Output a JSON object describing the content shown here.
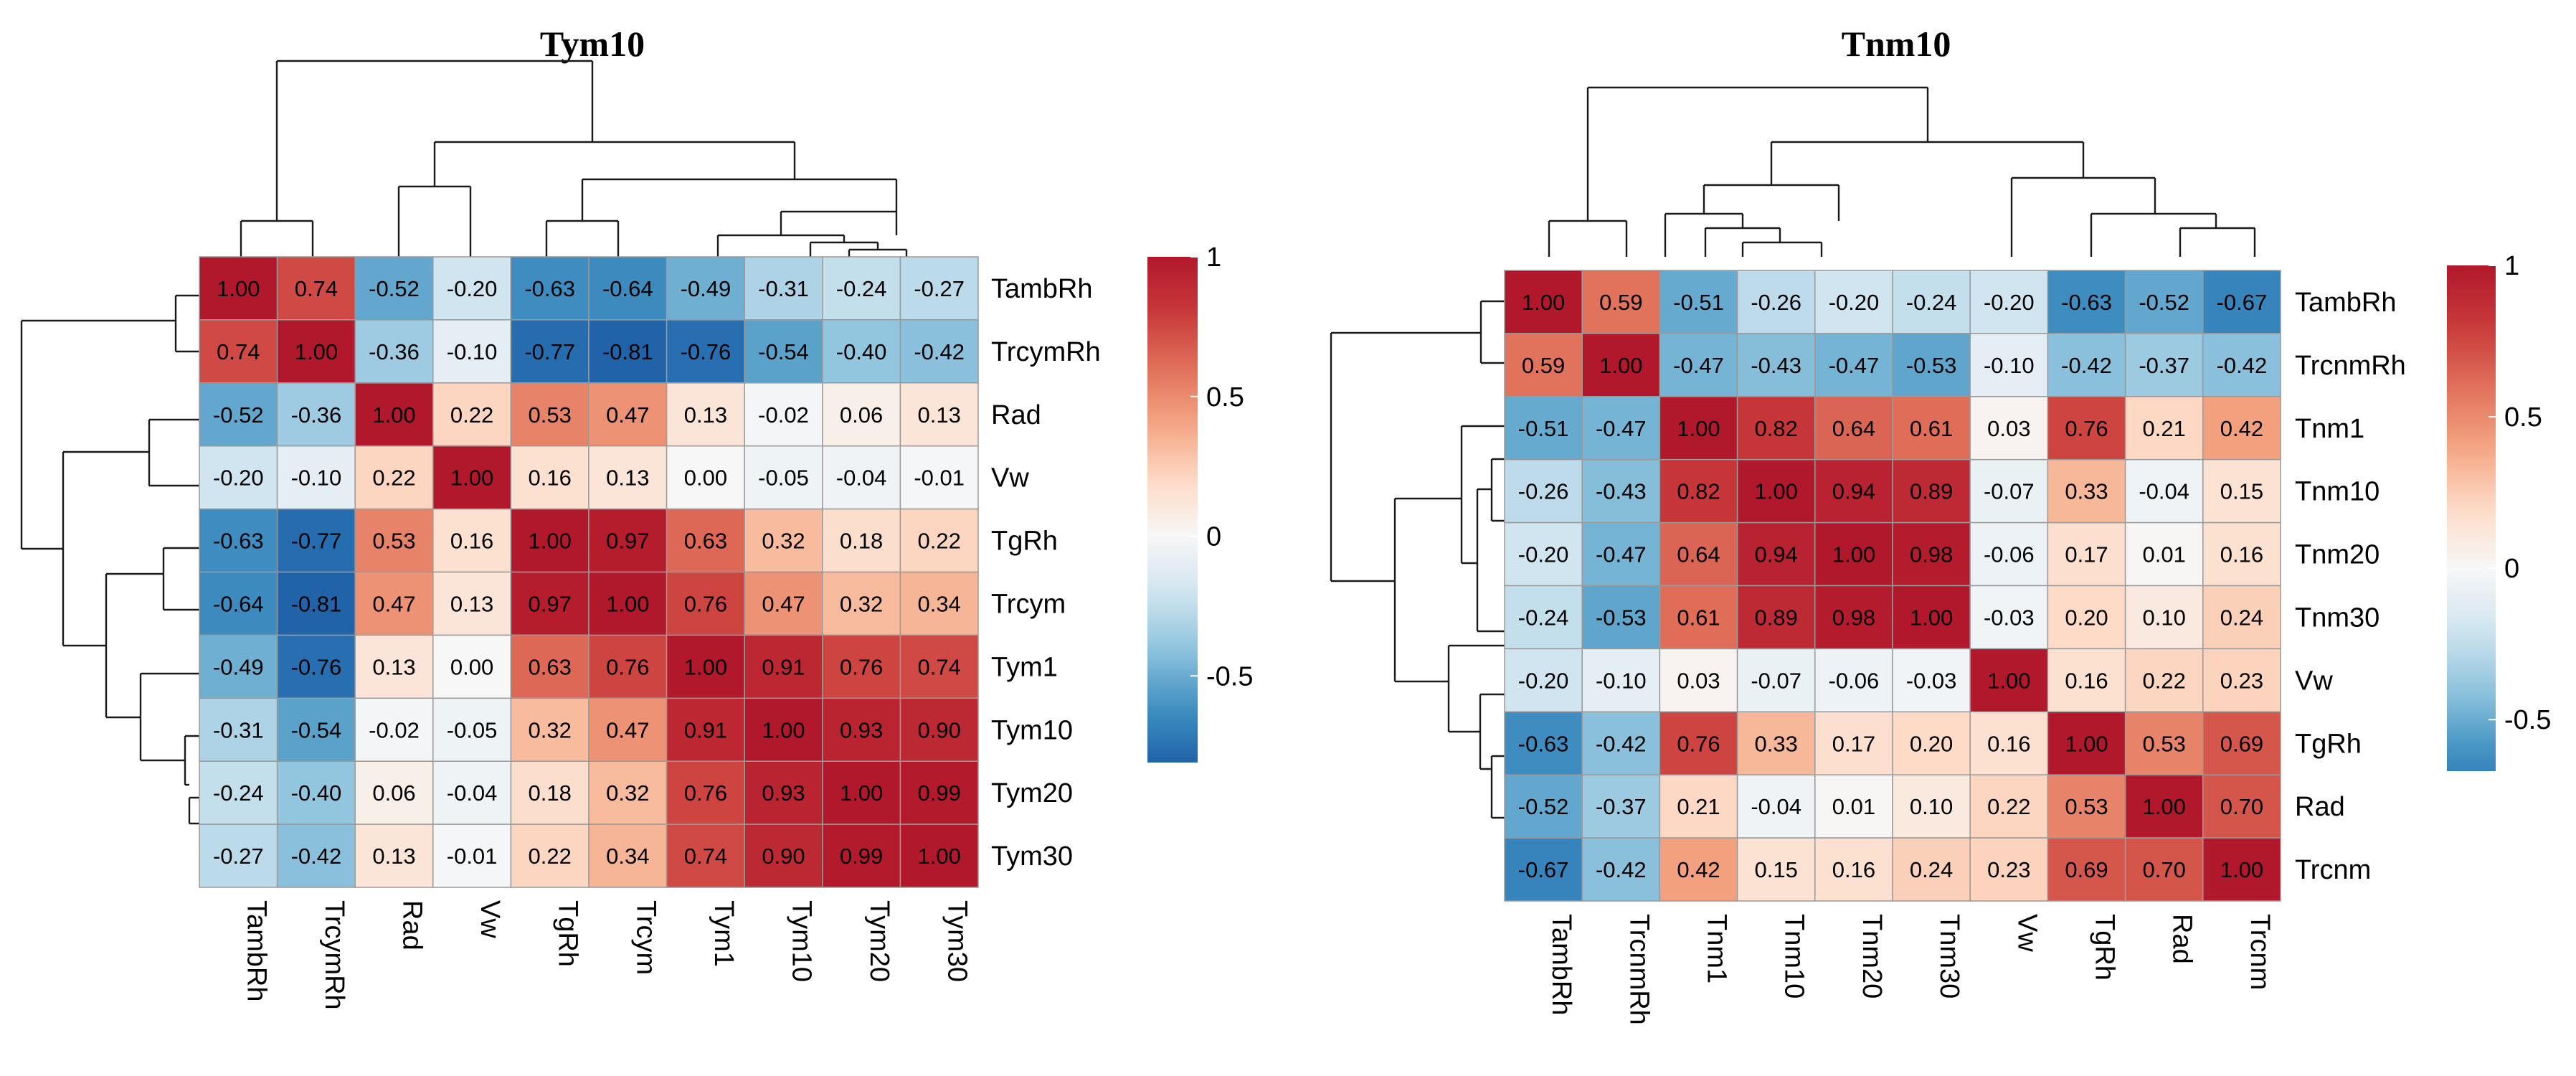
{
  "chart_data": [
    {
      "type": "heatmap",
      "title": "Tym10",
      "rows": [
        "TambRh",
        "TrcymRh",
        "Rad",
        "Vw",
        "TgRh",
        "Trcym",
        "Tym1",
        "Tym10",
        "Tym20",
        "Tym30"
      ],
      "columns": [
        "TambRh",
        "TrcymRh",
        "Rad",
        "Vw",
        "TgRh",
        "Trcym",
        "Tym1",
        "Tym10",
        "Tym20",
        "Tym30"
      ],
      "values": [
        [
          1.0,
          0.74,
          -0.52,
          -0.2,
          -0.63,
          -0.64,
          -0.49,
          -0.31,
          -0.24,
          -0.27
        ],
        [
          0.74,
          1.0,
          -0.36,
          -0.1,
          -0.77,
          -0.81,
          -0.76,
          -0.54,
          -0.4,
          -0.42
        ],
        [
          -0.52,
          -0.36,
          1.0,
          0.22,
          0.53,
          0.47,
          0.13,
          -0.02,
          0.06,
          0.13
        ],
        [
          -0.2,
          -0.1,
          0.22,
          1.0,
          0.16,
          0.13,
          0.0,
          -0.05,
          -0.04,
          -0.01
        ],
        [
          -0.63,
          -0.77,
          0.53,
          0.16,
          1.0,
          0.97,
          0.63,
          0.32,
          0.18,
          0.22
        ],
        [
          -0.64,
          -0.81,
          0.47,
          0.13,
          0.97,
          1.0,
          0.76,
          0.47,
          0.32,
          0.34
        ],
        [
          -0.49,
          -0.76,
          0.13,
          0.0,
          0.63,
          0.76,
          1.0,
          0.91,
          0.76,
          0.74
        ],
        [
          -0.31,
          -0.54,
          -0.02,
          -0.05,
          0.32,
          0.47,
          0.91,
          1.0,
          0.93,
          0.9
        ],
        [
          -0.24,
          -0.4,
          0.06,
          -0.04,
          0.18,
          0.32,
          0.76,
          0.93,
          1.0,
          0.99
        ],
        [
          -0.27,
          -0.42,
          0.13,
          -0.01,
          0.22,
          0.34,
          0.74,
          0.9,
          0.99,
          1.0
        ]
      ],
      "value_range": [
        -0.81,
        1.0
      ],
      "colorbar": {
        "ticks": [
          1,
          0.5,
          0,
          -0.5
        ],
        "tick_labels": [
          "1",
          "0.5",
          "0",
          "-0.5"
        ],
        "min": -0.81,
        "max": 1.0
      },
      "colormap": {
        "low": "#2166ac",
        "mid": "#f7f7f7",
        "high": "#b2182b"
      }
    },
    {
      "type": "heatmap",
      "title": "Tnm10",
      "rows": [
        "TambRh",
        "TrcnmRh",
        "Tnm1",
        "Tnm10",
        "Tnm20",
        "Tnm30",
        "Vw",
        "TgRh",
        "Rad",
        "Trcnm"
      ],
      "columns": [
        "TambRh",
        "TrcnmRh",
        "Tnm1",
        "Tnm10",
        "Tnm20",
        "Tnm30",
        "Vw",
        "TgRh",
        "Rad",
        "Trcnm"
      ],
      "values": [
        [
          1.0,
          0.59,
          -0.51,
          -0.26,
          -0.2,
          -0.24,
          -0.2,
          -0.63,
          -0.52,
          -0.67
        ],
        [
          0.59,
          1.0,
          -0.47,
          -0.43,
          -0.47,
          -0.53,
          -0.1,
          -0.42,
          -0.37,
          -0.42
        ],
        [
          -0.51,
          -0.47,
          1.0,
          0.82,
          0.64,
          0.61,
          0.03,
          0.76,
          0.21,
          0.42
        ],
        [
          -0.26,
          -0.43,
          0.82,
          1.0,
          0.94,
          0.89,
          -0.07,
          0.33,
          -0.04,
          0.15
        ],
        [
          -0.2,
          -0.47,
          0.64,
          0.94,
          1.0,
          0.98,
          -0.06,
          0.17,
          0.01,
          0.16
        ],
        [
          -0.24,
          -0.53,
          0.61,
          0.89,
          0.98,
          1.0,
          -0.03,
          0.2,
          0.1,
          0.24
        ],
        [
          -0.2,
          -0.1,
          0.03,
          -0.07,
          -0.06,
          -0.03,
          1.0,
          0.16,
          0.22,
          0.23
        ],
        [
          -0.63,
          -0.42,
          0.76,
          0.33,
          0.17,
          0.2,
          0.16,
          1.0,
          0.53,
          0.69
        ],
        [
          -0.52,
          -0.37,
          0.21,
          -0.04,
          0.01,
          0.1,
          0.22,
          0.53,
          1.0,
          0.7
        ],
        [
          -0.67,
          -0.42,
          0.42,
          0.15,
          0.16,
          0.24,
          0.23,
          0.69,
          0.7,
          1.0
        ]
      ],
      "value_range": [
        -0.67,
        1.0
      ],
      "colorbar": {
        "ticks": [
          1,
          0.5,
          0,
          -0.5
        ],
        "tick_labels": [
          "1",
          "0.5",
          "0",
          "-0.5"
        ],
        "min": -0.67,
        "max": 1.0
      },
      "colormap": {
        "low": "#2166ac",
        "mid": "#f7f7f7",
        "high": "#b2182b"
      }
    }
  ]
}
